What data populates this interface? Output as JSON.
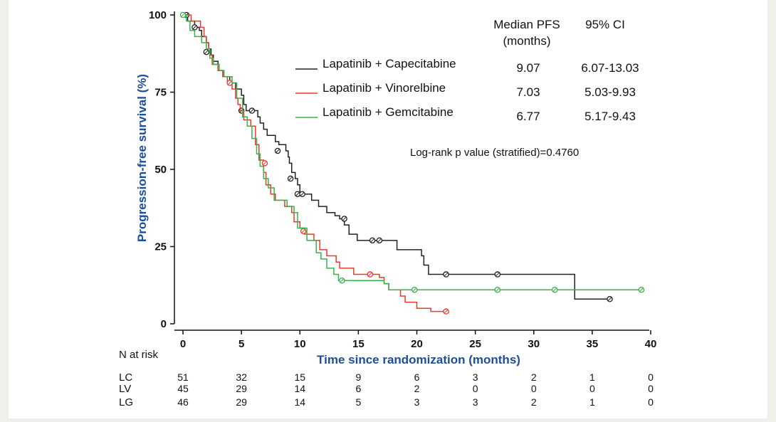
{
  "chart_data": {
    "type": "line",
    "subtype": "kaplan-meier",
    "xlabel": "Time since randomization (months)",
    "ylabel": "Progression-free survival (%)",
    "xlim": [
      0,
      40
    ],
    "ylim": [
      0,
      100
    ],
    "xticks": [
      0,
      5,
      10,
      15,
      20,
      25,
      30,
      35,
      40
    ],
    "yticks": [
      0,
      25,
      50,
      75,
      100
    ],
    "grid": false,
    "legend_position": "top-right",
    "legend_header": {
      "median": "Median PFS\n(months)",
      "ci": "95% CI"
    },
    "pvalue_text": "Log-rank p value (stratified)=0.4760",
    "series": [
      {
        "name": "Lapatinib + Capecitabine",
        "short": "LC",
        "color": "#222222",
        "median": "9.07",
        "ci": "6.07-13.03",
        "steps": [
          [
            0,
            100
          ],
          [
            0.4,
            98
          ],
          [
            0.8,
            98
          ],
          [
            1.0,
            96
          ],
          [
            1.4,
            95
          ],
          [
            1.6,
            93
          ],
          [
            2.0,
            91
          ],
          [
            2.2,
            89
          ],
          [
            2.4,
            87
          ],
          [
            2.6,
            85
          ],
          [
            3.0,
            82
          ],
          [
            3.5,
            80
          ],
          [
            4.0,
            78
          ],
          [
            4.5,
            76
          ],
          [
            5.0,
            74
          ],
          [
            5.2,
            71
          ],
          [
            5.4,
            69
          ],
          [
            6.4,
            67
          ],
          [
            6.6,
            65
          ],
          [
            6.9,
            63
          ],
          [
            7.2,
            61
          ],
          [
            7.9,
            59
          ],
          [
            8.2,
            58
          ],
          [
            8.8,
            56
          ],
          [
            9.0,
            54
          ],
          [
            9.1,
            52
          ],
          [
            9.3,
            49
          ],
          [
            9.6,
            47
          ],
          [
            9.8,
            45
          ],
          [
            10.0,
            42
          ],
          [
            11.0,
            40
          ],
          [
            11.6,
            38
          ],
          [
            12.3,
            36
          ],
          [
            13.0,
            35
          ],
          [
            13.4,
            34
          ],
          [
            13.8,
            32
          ],
          [
            14.2,
            29
          ],
          [
            14.9,
            27
          ],
          [
            16.7,
            27
          ],
          [
            18.3,
            24
          ],
          [
            20.4,
            22
          ],
          [
            20.6,
            19
          ],
          [
            21.0,
            16
          ],
          [
            33.3,
            16
          ],
          [
            33.5,
            8
          ],
          [
            36.7,
            8
          ]
        ],
        "censored": [
          [
            0.3,
            100
          ],
          [
            1.0,
            96
          ],
          [
            2.0,
            88
          ],
          [
            5.0,
            69
          ],
          [
            5.9,
            69
          ],
          [
            8.1,
            56
          ],
          [
            9.2,
            47
          ],
          [
            9.8,
            42
          ],
          [
            10.2,
            42
          ],
          [
            13.8,
            34
          ],
          [
            16.2,
            27
          ],
          [
            16.8,
            27
          ],
          [
            22.5,
            16
          ],
          [
            26.9,
            16
          ],
          [
            36.5,
            8
          ]
        ]
      },
      {
        "name": "Lapatinib + Vinorelbine",
        "short": "LV",
        "color": "#e8392c",
        "median": "7.03",
        "ci": "5.03-9.93",
        "steps": [
          [
            0,
            100
          ],
          [
            0.4,
            100
          ],
          [
            0.7,
            98
          ],
          [
            1.5,
            96
          ],
          [
            1.8,
            93
          ],
          [
            2.0,
            91
          ],
          [
            2.2,
            89
          ],
          [
            2.3,
            87
          ],
          [
            2.5,
            84
          ],
          [
            3.0,
            82
          ],
          [
            3.4,
            80
          ],
          [
            3.8,
            78
          ],
          [
            4.2,
            76
          ],
          [
            4.5,
            73
          ],
          [
            4.7,
            71
          ],
          [
            4.9,
            69
          ],
          [
            5.2,
            66
          ],
          [
            5.8,
            64
          ],
          [
            6.2,
            58
          ],
          [
            6.5,
            53
          ],
          [
            6.9,
            49
          ],
          [
            7.1,
            45
          ],
          [
            7.5,
            42
          ],
          [
            7.9,
            40
          ],
          [
            8.7,
            38
          ],
          [
            9.3,
            36
          ],
          [
            9.5,
            33
          ],
          [
            10.0,
            31
          ],
          [
            10.4,
            29
          ],
          [
            11.2,
            27
          ],
          [
            11.7,
            24
          ],
          [
            12.3,
            22
          ],
          [
            13.1,
            20
          ],
          [
            13.4,
            18
          ],
          [
            14.6,
            16
          ],
          [
            16.8,
            15
          ],
          [
            17.2,
            13
          ],
          [
            17.6,
            11
          ],
          [
            18.6,
            9
          ],
          [
            19.0,
            7
          ],
          [
            20.0,
            5
          ],
          [
            21.2,
            4
          ],
          [
            22.4,
            4
          ]
        ],
        "censored": [
          [
            4.0,
            78
          ],
          [
            7.0,
            52
          ],
          [
            10.3,
            30
          ],
          [
            16.0,
            16
          ],
          [
            22.5,
            4
          ]
        ]
      },
      {
        "name": "Lapatinib + Gemcitabine",
        "short": "LG",
        "color": "#36b24a",
        "median": "6.77",
        "ci": "5.17-9.43",
        "steps": [
          [
            0,
            100
          ],
          [
            0.3,
            98
          ],
          [
            0.6,
            95
          ],
          [
            1.0,
            93
          ],
          [
            1.6,
            91
          ],
          [
            2.0,
            89
          ],
          [
            2.3,
            86
          ],
          [
            2.6,
            84
          ],
          [
            3.1,
            82
          ],
          [
            3.5,
            80
          ],
          [
            4.2,
            78
          ],
          [
            4.6,
            73
          ],
          [
            5.1,
            67
          ],
          [
            5.5,
            64
          ],
          [
            5.9,
            60
          ],
          [
            6.3,
            55
          ],
          [
            6.6,
            51
          ],
          [
            6.9,
            47
          ],
          [
            7.3,
            44
          ],
          [
            7.8,
            40
          ],
          [
            8.9,
            38
          ],
          [
            9.5,
            36
          ],
          [
            9.8,
            31
          ],
          [
            10.6,
            27
          ],
          [
            11.4,
            23
          ],
          [
            11.8,
            21
          ],
          [
            12.3,
            18
          ],
          [
            12.9,
            16
          ],
          [
            13.3,
            14
          ],
          [
            14.5,
            14
          ],
          [
            17.0,
            14
          ],
          [
            17.2,
            13
          ],
          [
            17.6,
            11
          ],
          [
            39.2,
            11
          ]
        ],
        "censored": [
          [
            0.0,
            100
          ],
          [
            13.6,
            14
          ],
          [
            19.8,
            11
          ],
          [
            26.9,
            11
          ],
          [
            31.8,
            11
          ],
          [
            39.2,
            11
          ]
        ]
      }
    ],
    "risk_table": {
      "title": "N at risk",
      "times": [
        0,
        5,
        10,
        15,
        20,
        25,
        30,
        35,
        40
      ],
      "rows": [
        {
          "label": "LC",
          "values": [
            51,
            32,
            15,
            9,
            6,
            3,
            2,
            1,
            0
          ]
        },
        {
          "label": "LV",
          "values": [
            45,
            29,
            14,
            6,
            2,
            0,
            0,
            0,
            0
          ]
        },
        {
          "label": "LG",
          "values": [
            46,
            29,
            14,
            5,
            3,
            3,
            2,
            1,
            0
          ]
        }
      ]
    }
  }
}
